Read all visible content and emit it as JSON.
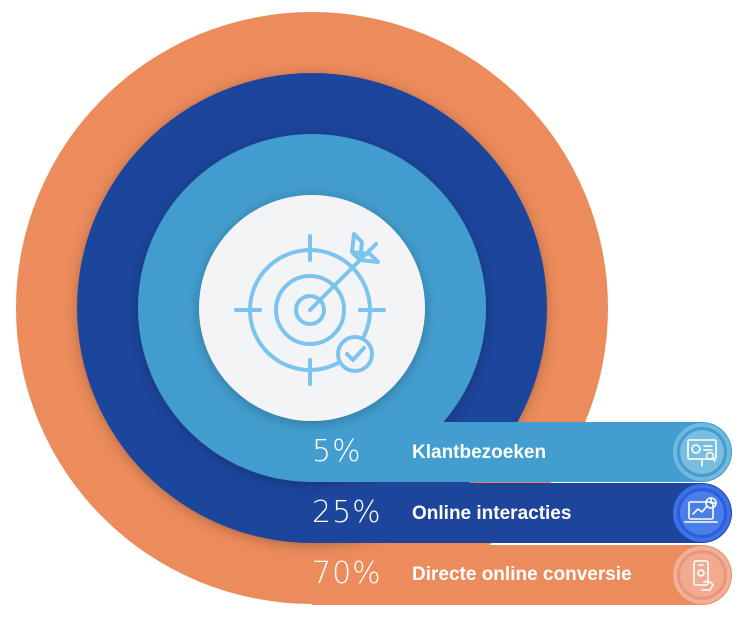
{
  "colors": {
    "orange": "#EC8B5B",
    "dark_blue": "#1E459C",
    "light_blue": "#439DCE",
    "center_bg": "#F3F4F6",
    "icon_line": "#7CC4EE"
  },
  "center_icon": "target-with-arrow-and-check-icon",
  "rows": [
    {
      "percent": "5%",
      "label": "Klantbezoeken",
      "icon": "presentation-board-icon",
      "value": 5
    },
    {
      "percent": "25%",
      "label": "Online interacties",
      "icon": "laptop-analytics-icon",
      "value": 25
    },
    {
      "percent": "70%",
      "label": "Directe online conversie",
      "icon": "mobile-phone-hand-icon",
      "value": 70
    }
  ]
}
